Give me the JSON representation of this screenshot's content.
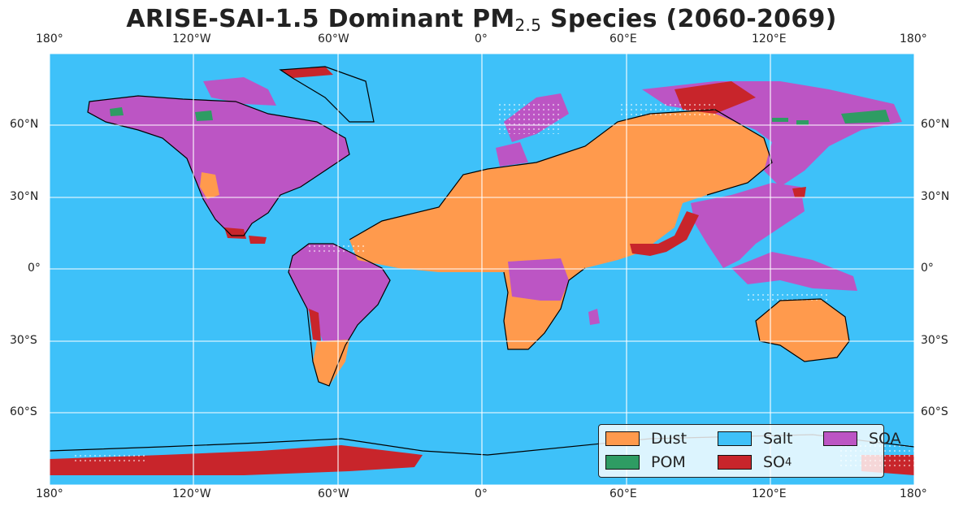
{
  "title": {
    "main": "ARISE-SAI-1.5 Dominant PM",
    "sub": "2.5",
    "rest": " Species (2060-2069)"
  },
  "longitude_ticks": [
    "180°",
    "120°W",
    "60°W",
    "0°",
    "60°E",
    "120°E",
    "180°"
  ],
  "latitude_ticks": [
    "60°N",
    "30°N",
    "0°",
    "30°S",
    "60°S"
  ],
  "legend": [
    {
      "label": "Dust",
      "sub": "",
      "color": "#FF9A4D"
    },
    {
      "label": "Salt",
      "sub": "",
      "color": "#3EC1F9"
    },
    {
      "label": "SOA",
      "sub": "",
      "color": "#BC55C4"
    },
    {
      "label": "POM",
      "sub": "",
      "color": "#2E9C63"
    },
    {
      "label": "SO",
      "sub": "4",
      "color": "#C8252B"
    }
  ],
  "colors": {
    "ocean": "#3EC1F9",
    "grid": "#ffffff",
    "coast": "#000000"
  }
}
